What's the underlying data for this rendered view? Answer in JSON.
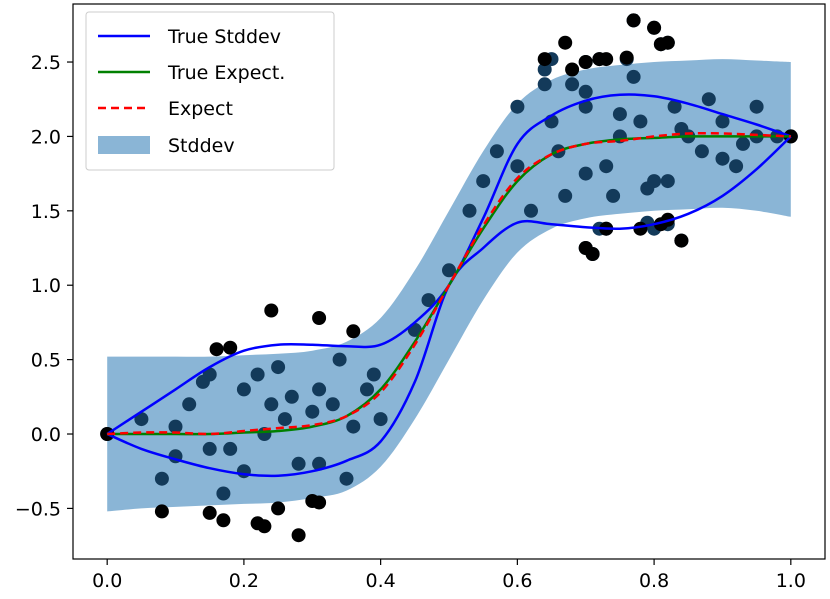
{
  "chart_data": {
    "type": "scatter",
    "title": "",
    "xlabel": "",
    "ylabel": "",
    "xlim": [
      -0.05,
      1.05
    ],
    "ylim": [
      -0.84,
      2.89
    ],
    "grid": false,
    "legend_location": "top-left",
    "xticks": [
      0.0,
      0.2,
      0.4,
      0.6,
      0.8,
      1.0
    ],
    "xtick_labels": [
      "0.0",
      "0.2",
      "0.4",
      "0.6",
      "0.8",
      "1.0"
    ],
    "yticks": [
      -0.5,
      0.0,
      0.5,
      1.0,
      1.5,
      2.0,
      2.5
    ],
    "ytick_labels": [
      "−0.5",
      "0.0",
      "0.5",
      "1.0",
      "1.5",
      "2.0",
      "2.5"
    ],
    "legend": [
      "True Stddev",
      "True Expect.",
      "Expect",
      "Stddev"
    ],
    "colors": {
      "true_stddev": "#0000ff",
      "true_expect": "#008000",
      "expect": "#ff0000",
      "stddev_band": "#8ab5d6",
      "points_inside": "#133a5a",
      "points_outside": "#000000"
    },
    "x": [
      0.0,
      0.05,
      0.1,
      0.15,
      0.2,
      0.25,
      0.3,
      0.35,
      0.4,
      0.45,
      0.5,
      0.55,
      0.6,
      0.65,
      0.7,
      0.75,
      0.8,
      0.85,
      0.9,
      0.95,
      1.0
    ],
    "series": [
      {
        "name": "True Expect.",
        "values": [
          0.0,
          0.0,
          0.0,
          0.0,
          0.01,
          0.02,
          0.05,
          0.12,
          0.3,
          0.62,
          1.0,
          1.38,
          1.7,
          1.88,
          1.95,
          1.98,
          1.99,
          2.0,
          2.0,
          2.0,
          2.0
        ]
      },
      {
        "name": "Expect",
        "values": [
          0.0,
          0.01,
          0.01,
          0.0,
          0.02,
          0.04,
          0.06,
          0.12,
          0.28,
          0.6,
          1.0,
          1.4,
          1.72,
          1.88,
          1.95,
          1.97,
          2.0,
          2.02,
          2.02,
          2.01,
          2.0
        ]
      },
      {
        "name": "True Stddev upper",
        "values": [
          0.0,
          0.15,
          0.3,
          0.45,
          0.56,
          0.6,
          0.6,
          0.59,
          0.6,
          0.75,
          1.0,
          1.45,
          1.95,
          2.14,
          2.24,
          2.28,
          2.27,
          2.22,
          2.15,
          2.08,
          2.0
        ]
      },
      {
        "name": "True Stddev lower",
        "values": [
          0.0,
          -0.1,
          -0.17,
          -0.23,
          -0.27,
          -0.28,
          -0.25,
          -0.18,
          -0.05,
          0.35,
          1.0,
          1.25,
          1.42,
          1.41,
          1.39,
          1.38,
          1.41,
          1.48,
          1.6,
          1.78,
          2.0
        ]
      },
      {
        "name": "Stddev upper",
        "values": [
          0.52,
          0.52,
          0.52,
          0.52,
          0.53,
          0.54,
          0.56,
          0.62,
          0.78,
          1.1,
          1.5,
          1.9,
          2.22,
          2.38,
          2.45,
          2.48,
          2.5,
          2.51,
          2.52,
          2.51,
          2.5
        ]
      },
      {
        "name": "Stddev lower",
        "values": [
          -0.52,
          -0.5,
          -0.49,
          -0.48,
          -0.47,
          -0.46,
          -0.43,
          -0.38,
          -0.22,
          0.1,
          0.5,
          0.9,
          1.22,
          1.38,
          1.45,
          1.48,
          1.5,
          1.51,
          1.52,
          1.5,
          1.46
        ]
      }
    ],
    "scatter_points": {
      "x": [
        0.0,
        0.1,
        0.15,
        0.24,
        0.31,
        0.35,
        0.2,
        0.17,
        0.15,
        0.08,
        0.23,
        0.26,
        0.28,
        0.31,
        0.05,
        0.12,
        0.18,
        0.22,
        0.27,
        0.33,
        0.36,
        0.38,
        0.4,
        0.1,
        0.14,
        0.2,
        0.25,
        0.3,
        0.34,
        0.39,
        0.45,
        0.47,
        0.5,
        0.53,
        0.55,
        0.57,
        0.6,
        0.65,
        0.67,
        0.7,
        0.73,
        0.75,
        0.78,
        0.8,
        0.83,
        0.87,
        0.9,
        0.92,
        0.95,
        0.6,
        0.62,
        0.66,
        0.7,
        0.74,
        0.77,
        0.82,
        0.85,
        0.88,
        0.93,
        0.64,
        0.7,
        0.75,
        0.79,
        0.84,
        0.9,
        0.95,
        0.98,
        1.0,
        0.64,
        0.68,
        0.7,
        0.72,
        0.76,
        0.77,
        0.8,
        0.81,
        0.82,
        0.65,
        0.72,
        0.7,
        0.71,
        0.73,
        0.79,
        0.8,
        0.82,
        0.84
      ],
      "y": [
        0.0,
        0.05,
        -0.1,
        0.2,
        -0.2,
        -0.3,
        0.3,
        -0.4,
        0.4,
        -0.3,
        0.0,
        0.1,
        -0.2,
        0.3,
        0.1,
        0.2,
        -0.1,
        0.4,
        0.25,
        0.2,
        0.05,
        0.3,
        0.1,
        -0.15,
        0.35,
        -0.25,
        0.45,
        0.15,
        0.5,
        0.4,
        0.7,
        0.9,
        1.1,
        1.5,
        1.7,
        1.9,
        1.8,
        2.1,
        1.6,
        2.2,
        1.8,
        2.0,
        2.1,
        1.7,
        2.2,
        1.9,
        2.1,
        1.8,
        2.0,
        2.2,
        1.5,
        1.9,
        2.3,
        1.6,
        2.4,
        1.7,
        2.0,
        2.25,
        1.95,
        2.35,
        1.75,
        2.15,
        1.65,
        2.05,
        1.85,
        2.2,
        2.0,
        2.0,
        2.45,
        2.35,
        2.5,
        2.52,
        2.52,
        2.78,
        2.73,
        2.62,
        2.63,
        2.52,
        1.38,
        1.25,
        1.21,
        1.38,
        1.42,
        1.38,
        1.41,
        1.3
      ],
      "outside_x": [
        0.08,
        0.15,
        0.17,
        0.22,
        0.23,
        0.25,
        0.28,
        0.3,
        0.31,
        0.16,
        0.18,
        0.24,
        0.31,
        0.36,
        0.0,
        0.64,
        0.67,
        0.68,
        0.7,
        0.72,
        0.73,
        0.76,
        0.77,
        0.8,
        0.81,
        0.82,
        0.73,
        0.7,
        0.71,
        0.78,
        0.81,
        0.82,
        0.84,
        1.0
      ],
      "outside_y": [
        -0.52,
        -0.53,
        -0.58,
        -0.6,
        -0.62,
        -0.5,
        -0.68,
        -0.45,
        -0.46,
        0.57,
        0.58,
        0.83,
        0.78,
        0.69,
        0.0,
        2.52,
        2.63,
        2.45,
        2.5,
        2.52,
        2.52,
        2.53,
        2.78,
        2.73,
        2.62,
        2.63,
        1.38,
        1.25,
        1.21,
        1.38,
        1.41,
        1.44,
        1.3,
        2.0
      ]
    }
  }
}
